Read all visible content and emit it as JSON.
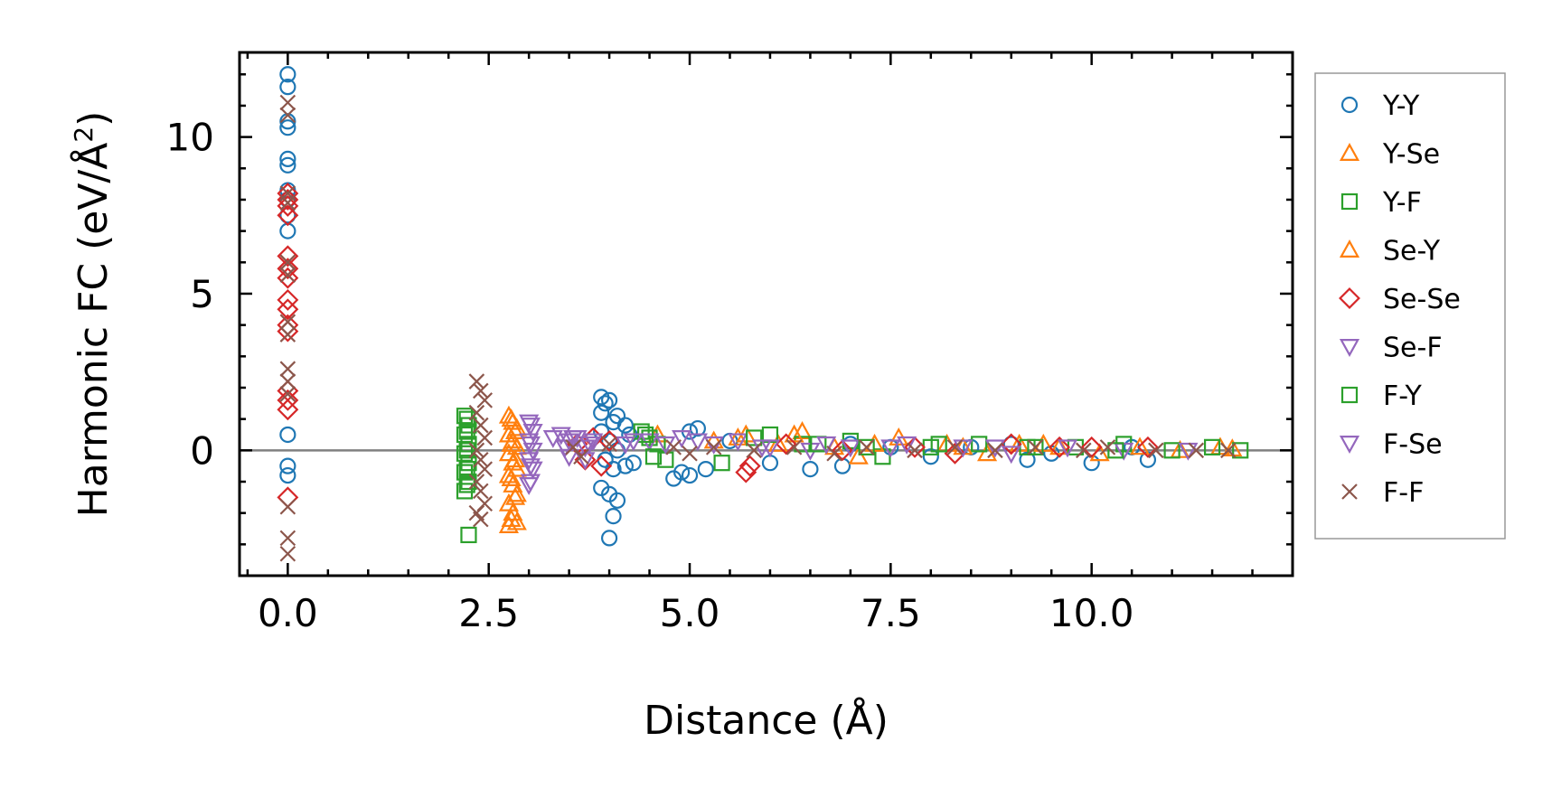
{
  "chart_data": {
    "type": "scatter",
    "title": "",
    "xlabel": "Distance (Å)",
    "ylabel_main": "Harmonic FC (eV/Å",
    "ylabel_sup": "2",
    "ylabel_close": ")",
    "xlim": [
      -0.6,
      12.5
    ],
    "ylim": [
      -4.0,
      12.7
    ],
    "xticks": [
      0.0,
      2.5,
      5.0,
      7.5,
      10.0
    ],
    "xtick_labels": [
      "0.0",
      "2.5",
      "5.0",
      "7.5",
      "10.0"
    ],
    "yticks": [
      0,
      5,
      10
    ],
    "ytick_labels": [
      "0",
      "5",
      "10"
    ],
    "zero_line": 0,
    "legend_position": "outside-right",
    "series": [
      {
        "name": "Y-Y",
        "marker": "circle",
        "color": "#1f77b4",
        "points": [
          [
            0,
            12.0
          ],
          [
            0,
            11.6
          ],
          [
            0,
            10.5
          ],
          [
            0,
            10.3
          ],
          [
            0,
            9.3
          ],
          [
            0,
            9.1
          ],
          [
            0,
            8.3
          ],
          [
            0,
            8.0
          ],
          [
            0,
            7.5
          ],
          [
            0,
            7.0
          ],
          [
            0,
            0.5
          ],
          [
            0,
            -0.5
          ],
          [
            0,
            -0.8
          ],
          [
            3.9,
            1.7
          ],
          [
            3.95,
            1.5
          ],
          [
            4.0,
            1.6
          ],
          [
            3.9,
            1.2
          ],
          [
            4.05,
            0.9
          ],
          [
            4.1,
            1.1
          ],
          [
            3.9,
            0.6
          ],
          [
            4.0,
            0.3
          ],
          [
            4.1,
            0.0
          ],
          [
            3.95,
            -0.3
          ],
          [
            4.05,
            -0.6
          ],
          [
            3.9,
            -1.2
          ],
          [
            4.0,
            -1.4
          ],
          [
            4.1,
            -1.6
          ],
          [
            4.05,
            -2.1
          ],
          [
            4.0,
            -2.8
          ],
          [
            4.2,
            0.8
          ],
          [
            4.25,
            0.5
          ],
          [
            4.2,
            -0.5
          ],
          [
            4.3,
            -0.4
          ],
          [
            4.8,
            -0.9
          ],
          [
            4.9,
            -0.7
          ],
          [
            5.0,
            0.6
          ],
          [
            5.1,
            0.7
          ],
          [
            5.2,
            -0.6
          ],
          [
            5.0,
            -0.8
          ],
          [
            5.5,
            0.3
          ],
          [
            6.0,
            -0.4
          ],
          [
            6.5,
            -0.6
          ],
          [
            6.9,
            -0.5
          ],
          [
            7.0,
            0.2
          ],
          [
            7.5,
            0.1
          ],
          [
            8.0,
            -0.2
          ],
          [
            8.5,
            0.1
          ],
          [
            9.0,
            0.2
          ],
          [
            9.2,
            -0.3
          ],
          [
            9.5,
            -0.1
          ],
          [
            10.0,
            -0.4
          ],
          [
            10.5,
            0.1
          ],
          [
            10.7,
            -0.3
          ]
        ]
      },
      {
        "name": "Y-Se",
        "marker": "triangle-up",
        "color": "#ff7f0e",
        "points": [
          [
            2.75,
            1.1
          ],
          [
            2.8,
            0.9
          ],
          [
            2.85,
            0.7
          ],
          [
            2.75,
            0.5
          ],
          [
            2.8,
            0.3
          ],
          [
            2.85,
            0.1
          ],
          [
            2.75,
            -0.1
          ],
          [
            2.8,
            -0.4
          ],
          [
            2.85,
            -0.6
          ],
          [
            2.75,
            -0.8
          ],
          [
            2.8,
            -1.1
          ],
          [
            2.85,
            -1.4
          ],
          [
            2.75,
            -1.7
          ],
          [
            2.8,
            -2.0
          ],
          [
            2.85,
            -2.3
          ],
          [
            2.75,
            -2.4
          ],
          [
            4.6,
            0.5
          ],
          [
            5.3,
            0.3
          ],
          [
            5.7,
            0.5
          ],
          [
            6.1,
            0.2
          ],
          [
            6.4,
            0.6
          ],
          [
            6.8,
            0.1
          ],
          [
            7.1,
            -0.2
          ],
          [
            7.6,
            0.4
          ],
          [
            8.2,
            0.2
          ],
          [
            8.7,
            -0.1
          ],
          [
            9.1,
            0.2
          ],
          [
            9.6,
            0.1
          ],
          [
            10.1,
            -0.1
          ],
          [
            10.6,
            0.1
          ],
          [
            11.1,
            0.0
          ],
          [
            11.6,
            0.1
          ],
          [
            11.75,
            0.05
          ]
        ]
      },
      {
        "name": "Y-F",
        "marker": "square",
        "color": "#2ca02c",
        "points": [
          [
            2.2,
            1.1
          ],
          [
            2.25,
            0.8
          ],
          [
            2.2,
            0.5
          ],
          [
            2.25,
            0.2
          ],
          [
            2.2,
            -0.1
          ],
          [
            2.25,
            -0.4
          ],
          [
            2.2,
            -0.7
          ],
          [
            2.25,
            -1.0
          ],
          [
            2.2,
            -1.3
          ],
          [
            2.25,
            -2.7
          ],
          [
            4.4,
            0.6
          ],
          [
            4.5,
            0.4
          ],
          [
            4.6,
            0.2
          ],
          [
            4.7,
            -0.3
          ],
          [
            5.4,
            -0.4
          ],
          [
            6.0,
            0.5
          ],
          [
            6.4,
            0.2
          ],
          [
            7.0,
            0.3
          ],
          [
            7.4,
            -0.2
          ],
          [
            8.0,
            0.1
          ],
          [
            8.6,
            0.2
          ],
          [
            9.2,
            0.1
          ],
          [
            9.8,
            0.1
          ],
          [
            10.4,
            0.2
          ],
          [
            11.0,
            0.0
          ],
          [
            11.5,
            0.1
          ],
          [
            11.85,
            0.0
          ]
        ]
      },
      {
        "name": "Se-Y",
        "marker": "triangle-up",
        "color": "#ff7f0e",
        "points": [
          [
            2.78,
            1.0
          ],
          [
            2.83,
            0.6
          ],
          [
            2.78,
            0.2
          ],
          [
            2.83,
            -0.3
          ],
          [
            2.78,
            -0.9
          ],
          [
            2.83,
            -1.5
          ],
          [
            2.78,
            -2.2
          ],
          [
            5.6,
            0.4
          ],
          [
            6.3,
            0.5
          ],
          [
            7.3,
            0.2
          ],
          [
            8.4,
            0.1
          ],
          [
            9.4,
            0.2
          ]
        ]
      },
      {
        "name": "Se-Se",
        "marker": "diamond",
        "color": "#d62728",
        "points": [
          [
            0,
            8.2
          ],
          [
            0,
            8.0
          ],
          [
            0,
            7.8
          ],
          [
            0,
            7.5
          ],
          [
            0,
            6.2
          ],
          [
            0,
            5.8
          ],
          [
            0,
            5.5
          ],
          [
            0,
            4.8
          ],
          [
            0,
            4.5
          ],
          [
            0,
            4.0
          ],
          [
            0,
            3.8
          ],
          [
            0,
            1.9
          ],
          [
            0,
            1.6
          ],
          [
            0,
            1.3
          ],
          [
            0,
            -1.5
          ],
          [
            3.6,
            0.2
          ],
          [
            3.7,
            -0.3
          ],
          [
            3.8,
            0.4
          ],
          [
            3.9,
            -0.5
          ],
          [
            4.0,
            0.3
          ],
          [
            5.7,
            -0.7
          ],
          [
            5.75,
            -0.5
          ],
          [
            6.2,
            0.2
          ],
          [
            6.9,
            0.0
          ],
          [
            7.8,
            0.1
          ],
          [
            8.3,
            -0.1
          ],
          [
            9.0,
            0.2
          ],
          [
            9.6,
            0.1
          ],
          [
            10.0,
            0.1
          ],
          [
            10.7,
            0.1
          ]
        ]
      },
      {
        "name": "Se-F",
        "marker": "triangle-down",
        "color": "#9467bd",
        "points": [
          [
            3.0,
            0.9
          ],
          [
            3.05,
            0.6
          ],
          [
            3.0,
            0.3
          ],
          [
            3.05,
            0.0
          ],
          [
            3.0,
            -0.3
          ],
          [
            3.05,
            -0.6
          ],
          [
            3.0,
            -1.1
          ],
          [
            3.4,
            0.5
          ],
          [
            3.5,
            0.3
          ],
          [
            3.6,
            0.4
          ],
          [
            3.7,
            0.1
          ],
          [
            3.8,
            0.3
          ],
          [
            3.5,
            -0.2
          ],
          [
            3.7,
            -0.3
          ],
          [
            4.2,
            0.2
          ],
          [
            4.5,
            0.3
          ],
          [
            4.9,
            0.4
          ],
          [
            5.3,
            0.2
          ],
          [
            5.6,
            0.3
          ],
          [
            6.0,
            0.1
          ],
          [
            6.5,
            0.0
          ],
          [
            7.0,
            0.1
          ],
          [
            7.7,
            0.2
          ],
          [
            8.4,
            0.1
          ],
          [
            9.0,
            -0.1
          ],
          [
            9.7,
            0.1
          ],
          [
            10.4,
            0.0
          ],
          [
            11.2,
            0.0
          ]
        ]
      },
      {
        "name": "F-Y",
        "marker": "square",
        "color": "#2ca02c",
        "points": [
          [
            2.23,
            1.0
          ],
          [
            2.23,
            0.6
          ],
          [
            2.23,
            0.0
          ],
          [
            2.23,
            -0.6
          ],
          [
            2.23,
            -1.1
          ],
          [
            4.45,
            0.5
          ],
          [
            4.55,
            -0.2
          ],
          [
            5.8,
            0.4
          ],
          [
            6.6,
            0.2
          ],
          [
            7.2,
            0.1
          ],
          [
            8.1,
            0.2
          ],
          [
            9.3,
            0.1
          ],
          [
            10.3,
            0.0
          ]
        ]
      },
      {
        "name": "F-Se",
        "marker": "triangle-down",
        "color": "#9467bd",
        "points": [
          [
            3.02,
            0.8
          ],
          [
            3.02,
            0.2
          ],
          [
            3.02,
            -0.5
          ],
          [
            3.02,
            -1.0
          ],
          [
            3.3,
            0.4
          ],
          [
            3.45,
            0.1
          ],
          [
            3.55,
            0.4
          ],
          [
            3.75,
            0.2
          ],
          [
            4.3,
            0.3
          ],
          [
            4.7,
            0.2
          ],
          [
            5.1,
            0.3
          ],
          [
            5.9,
            0.1
          ],
          [
            6.7,
            0.2
          ],
          [
            7.5,
            0.1
          ],
          [
            8.8,
            0.1
          ]
        ]
      },
      {
        "name": "F-F",
        "marker": "x",
        "color": "#8c564b",
        "points": [
          [
            0,
            11.1
          ],
          [
            0,
            10.7
          ],
          [
            0,
            8.2
          ],
          [
            0,
            7.9
          ],
          [
            0,
            6.0
          ],
          [
            0,
            5.6
          ],
          [
            0,
            4.1
          ],
          [
            0,
            3.7
          ],
          [
            0,
            2.6
          ],
          [
            0,
            2.2
          ],
          [
            0,
            1.8
          ],
          [
            0,
            -1.8
          ],
          [
            0,
            -2.8
          ],
          [
            0,
            -3.3
          ],
          [
            2.35,
            2.2
          ],
          [
            2.4,
            1.9
          ],
          [
            2.45,
            1.6
          ],
          [
            2.35,
            1.2
          ],
          [
            2.4,
            0.8
          ],
          [
            2.45,
            0.4
          ],
          [
            2.35,
            0.0
          ],
          [
            2.4,
            -0.3
          ],
          [
            2.45,
            -0.6
          ],
          [
            2.35,
            -1.0
          ],
          [
            2.4,
            -1.3
          ],
          [
            2.45,
            -1.7
          ],
          [
            2.35,
            -2.0
          ],
          [
            2.4,
            -2.2
          ],
          [
            3.55,
            0.1
          ],
          [
            3.65,
            -0.2
          ],
          [
            4.0,
            0.2
          ],
          [
            4.8,
            0.1
          ],
          [
            5.0,
            -0.1
          ],
          [
            5.3,
            0.1
          ],
          [
            5.8,
            0.0
          ],
          [
            6.3,
            0.1
          ],
          [
            6.8,
            -0.1
          ],
          [
            7.2,
            0.1
          ],
          [
            7.8,
            0.0
          ],
          [
            8.3,
            0.1
          ],
          [
            8.8,
            0.0
          ],
          [
            9.3,
            0.1
          ],
          [
            9.9,
            0.0
          ],
          [
            10.2,
            0.1
          ],
          [
            10.8,
            0.0
          ],
          [
            11.3,
            0.0
          ],
          [
            11.7,
            0.0
          ]
        ]
      }
    ]
  }
}
